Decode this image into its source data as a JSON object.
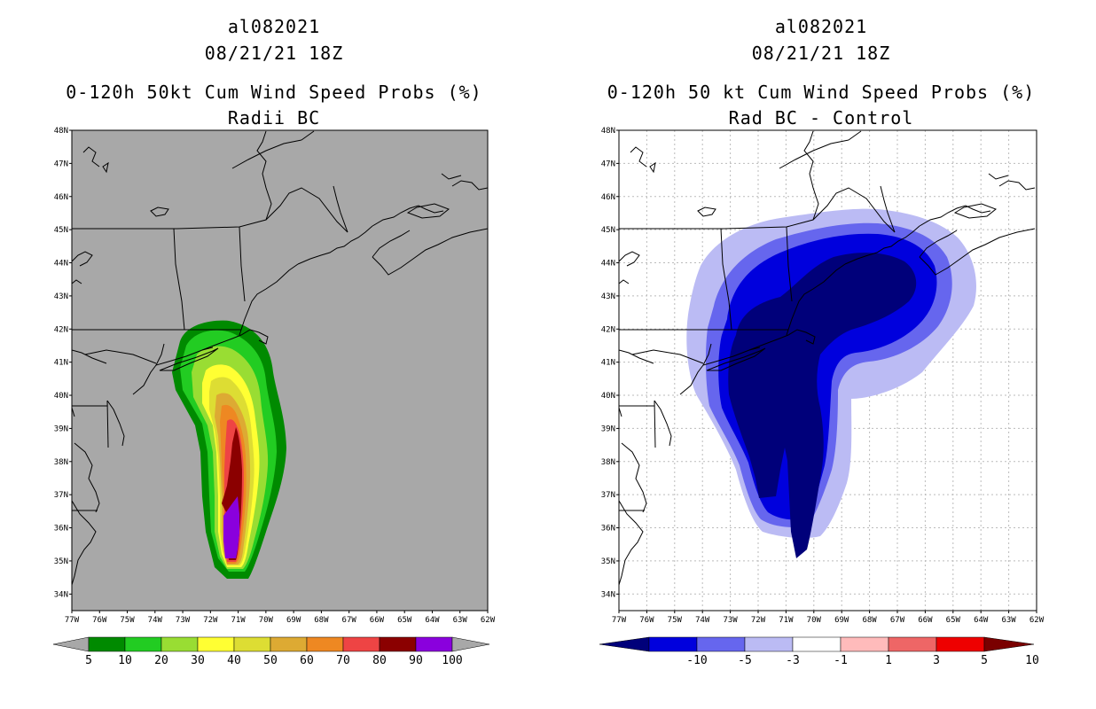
{
  "left_panel": {
    "storm_id": "al082021",
    "datetime": "08/21/21 18Z",
    "title": "0-120h 50kt Cum Wind Speed Probs (%)",
    "subtitle": "Radii BC",
    "background_color": "#a8a8a8",
    "colorbar": {
      "labels": [
        "5",
        "10",
        "20",
        "30",
        "40",
        "50",
        "60",
        "70",
        "80",
        "90",
        "100"
      ],
      "colors": [
        "#008a00",
        "#22cc22",
        "#99dd33",
        "#ffff33",
        "#dddd33",
        "#ddaa33",
        "#ee8822",
        "#ee4444",
        "#8b0000",
        "#8a00dd"
      ],
      "extend_color": "#a8a8a8"
    }
  },
  "right_panel": {
    "storm_id": "al082021",
    "datetime": "08/21/21 18Z",
    "title": "0-120h 50 kt Cum Wind Speed Probs (%)",
    "subtitle": "Rad BC - Control",
    "background_color": "#ffffff",
    "colorbar": {
      "labels": [
        "-10",
        "-5",
        "-3",
        "-1",
        "1",
        "3",
        "5",
        "10"
      ],
      "colors": [
        "#0000dd",
        "#6666ee",
        "#bbbbf4",
        "#ffffff",
        "#ffbbbb",
        "#ee6666",
        "#ee0000"
      ],
      "low_extend_color": "#00007a",
      "high_extend_color": "#7a0000"
    }
  },
  "axes": {
    "lat_labels": [
      "48N",
      "47N",
      "46N",
      "45N",
      "44N",
      "43N",
      "42N",
      "41N",
      "40N",
      "39N",
      "38N",
      "37N",
      "36N",
      "35N",
      "34N"
    ],
    "lon_labels": [
      "77W",
      "76W",
      "75W",
      "74W",
      "73W",
      "72W",
      "71W",
      "70W",
      "69W",
      "68W",
      "67W",
      "66W",
      "65W",
      "64W",
      "63W",
      "62W"
    ]
  }
}
